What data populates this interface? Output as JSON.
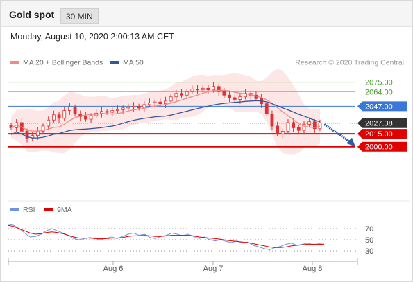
{
  "header": {
    "title": "Gold spot",
    "timeframe": "30 MIN"
  },
  "datetime": "Monday, August 10, 2020 2:00:13 AM CET",
  "colors": {
    "ma20": "#f08a8a",
    "ma50": "#34579a",
    "band_fill": "#fde3e3",
    "candle": "#e03030",
    "resist": "#7cc25a",
    "pivot": "#3a78d8",
    "support": "#e00000",
    "current": "#333333",
    "arrow": "#2c5da8",
    "rsi": "#6f93e0",
    "rsi_ma": "#e00000"
  },
  "chart_data": [
    {
      "type": "candlestick",
      "title": "",
      "legend": [
        "MA 20 + Bollinger Bands",
        "MA 50"
      ],
      "legend_position": "top-left",
      "watermark": "Research © 2020 Trading Central",
      "x_ticks": [
        "Aug 6",
        "Aug 7",
        "Aug 8"
      ],
      "ylim": [
        1945,
        2090
      ],
      "close_series": [
        2022,
        2028,
        2018,
        2010,
        2013,
        2018,
        2024,
        2031,
        2037,
        2033,
        2042,
        2046,
        2038,
        2035,
        2032,
        2036,
        2039,
        2041,
        2040,
        2042,
        2043,
        2045,
        2046,
        2047,
        2045,
        2049,
        2051,
        2052,
        2050,
        2053,
        2058,
        2062,
        2060,
        2064,
        2067,
        2066,
        2068,
        2066,
        2070,
        2064,
        2060,
        2057,
        2055,
        2058,
        2062,
        2060,
        2056,
        2050,
        2038,
        2024,
        2015,
        2018,
        2028,
        2022,
        2019,
        2026,
        2029,
        2021,
        2027.38
      ],
      "levels": [
        {
          "label": "2075.00",
          "value": 2075.0,
          "kind": "resistance"
        },
        {
          "label": "2064.00",
          "value": 2064.0,
          "kind": "resistance"
        },
        {
          "label": "2047.00",
          "value": 2047.0,
          "kind": "pivot"
        },
        {
          "label": "2027.38",
          "value": 2027.38,
          "kind": "current"
        },
        {
          "label": "2015.00",
          "value": 2015.0,
          "kind": "support"
        },
        {
          "label": "2000.00",
          "value": 2000.0,
          "kind": "support"
        }
      ],
      "arrow": {
        "from_value": 2026,
        "to_value": 2000,
        "direction": "down"
      }
    },
    {
      "type": "line",
      "title": "",
      "legend": [
        "RSI",
        "9MA"
      ],
      "ylim": [
        20,
        85
      ],
      "y_ticks": [
        70,
        50,
        30
      ],
      "rsi_series": [
        78,
        76,
        70,
        62,
        55,
        56,
        60,
        66,
        70,
        66,
        62,
        58,
        52,
        50,
        52,
        54,
        52,
        50,
        53,
        55,
        52,
        56,
        60,
        62,
        58,
        60,
        54,
        52,
        56,
        58,
        62,
        60,
        57,
        60,
        56,
        52,
        55,
        50,
        48,
        50,
        47,
        45,
        48,
        44,
        46,
        40,
        37,
        34,
        32,
        36,
        38,
        42,
        44,
        40,
        42,
        44,
        41,
        43,
        42
      ],
      "ma_series": [
        76,
        74,
        70,
        66,
        62,
        60,
        61,
        63,
        64,
        63,
        61,
        58,
        55,
        53,
        53,
        53,
        52,
        52,
        52,
        53,
        53,
        54,
        56,
        57,
        57,
        58,
        57,
        56,
        56,
        57,
        58,
        58,
        58,
        58,
        57,
        55,
        54,
        53,
        52,
        51,
        49,
        48,
        47,
        46,
        45,
        43,
        41,
        39,
        37,
        36,
        36,
        37,
        39,
        40,
        41,
        42,
        42,
        42,
        42
      ]
    }
  ]
}
